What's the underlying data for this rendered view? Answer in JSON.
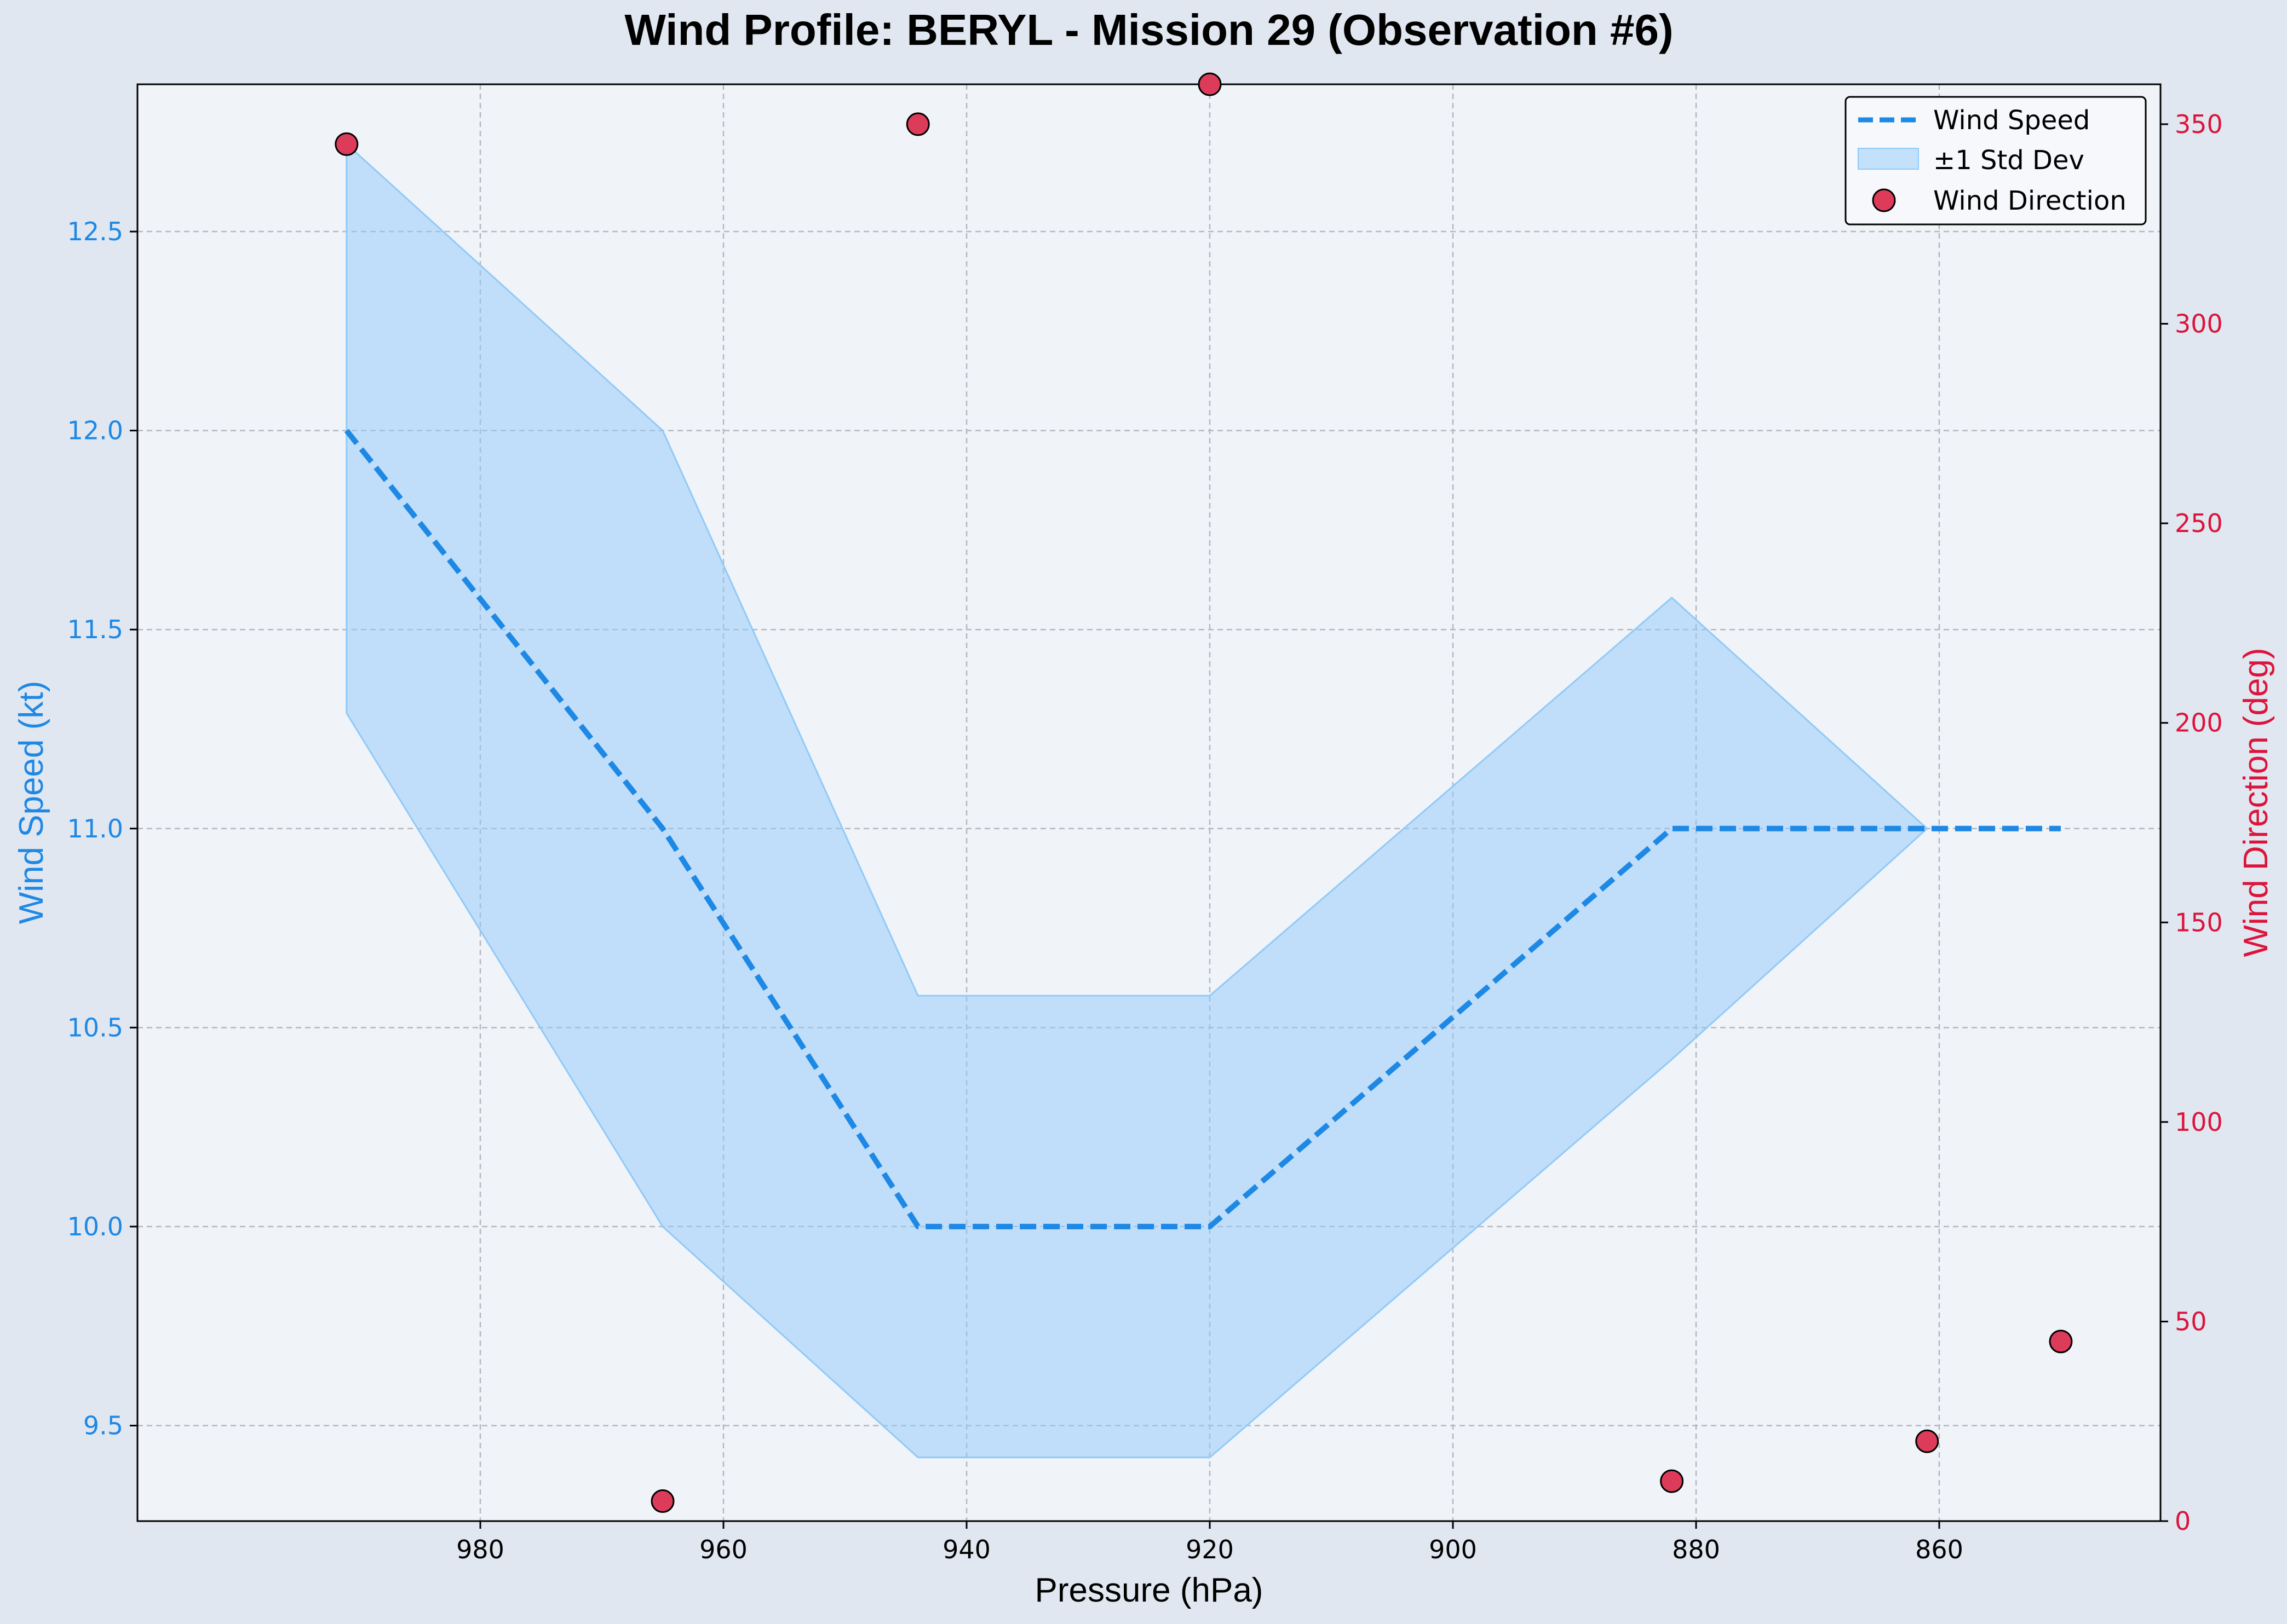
{
  "chart_data": {
    "type": "line",
    "title": "Wind Profile: BERYL - Mission 29 (Observation #6)",
    "xlabel": "Pressure (hPa)",
    "ylabel_left": "Wind Speed (kt)",
    "ylabel_right": "Wind Direction (deg)",
    "x_inverted": true,
    "xlim": [
      1008.2,
      841.8
    ],
    "ylim_left": [
      9.26,
      12.87
    ],
    "ylim_right": [
      0,
      360
    ],
    "x_ticks": [
      980,
      960,
      940,
      920,
      900,
      880,
      860
    ],
    "y_ticks_left": [
      9.5,
      10.0,
      10.5,
      11.0,
      11.5,
      12.0,
      12.5
    ],
    "y_ticks_right": [
      0,
      50,
      100,
      150,
      200,
      250,
      300,
      350
    ],
    "grid": true,
    "legend_position": "upper right",
    "legend": [
      "Wind Speed",
      "±1 Std Dev",
      "Wind Direction"
    ],
    "x": [
      991,
      965,
      944,
      920,
      882,
      861,
      850
    ],
    "series": [
      {
        "name": "Wind Speed",
        "axis": "left",
        "style": "dashed-line",
        "color": "#1e88e5",
        "values": [
          12.0,
          11.0,
          10.0,
          10.0,
          11.0,
          11.0,
          11.0
        ]
      },
      {
        "name": "±1 Std Dev",
        "axis": "left",
        "style": "band",
        "color": "#90caf9",
        "upper": [
          12.72,
          12.0,
          10.58,
          10.58,
          11.58,
          11.0,
          null
        ],
        "lower": [
          11.29,
          10.0,
          9.42,
          9.42,
          10.42,
          11.0,
          null
        ]
      },
      {
        "name": "Wind Direction",
        "axis": "right",
        "style": "scatter",
        "color": "#dc143c",
        "values": [
          345,
          5,
          350,
          360,
          10,
          20,
          45
        ]
      }
    ]
  },
  "colors": {
    "figure_bg": "#e1e7f0",
    "plot_bg": "#f0f3f8",
    "speed": "#1e88e5",
    "band": "#90caf9",
    "direction": "#dc143c",
    "grid": "#b4b9bf"
  }
}
